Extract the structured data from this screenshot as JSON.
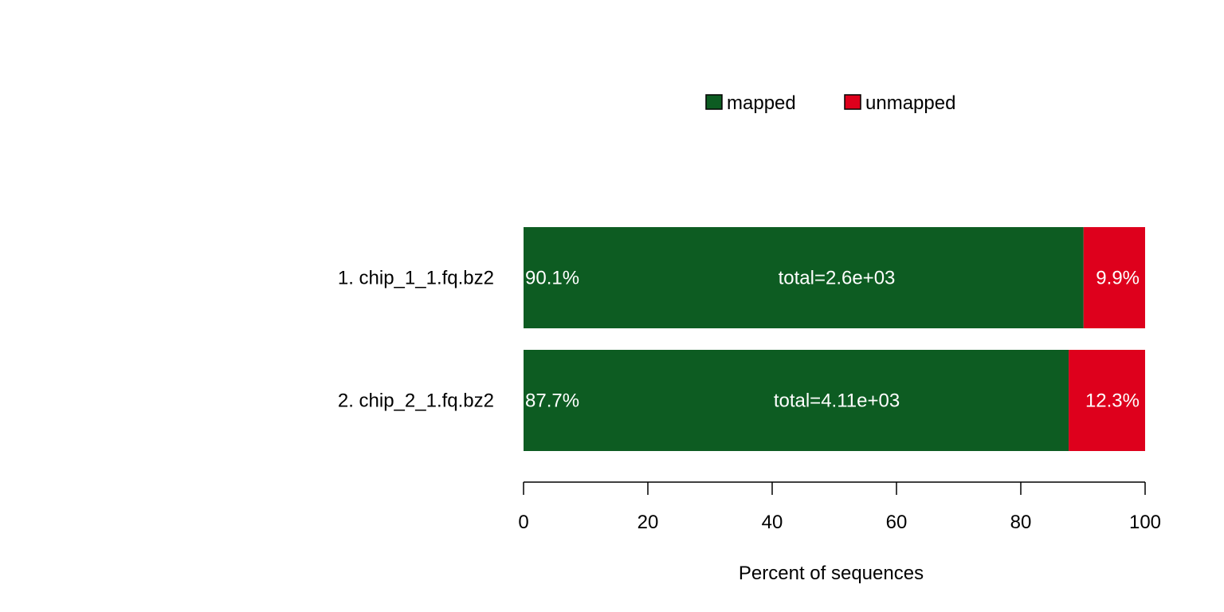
{
  "chart_data": {
    "type": "bar",
    "orientation": "horizontal",
    "stacked": true,
    "categories": [
      "1. chip_1_1.fq.bz2",
      "2. chip_2_1.fq.bz2"
    ],
    "series": [
      {
        "name": "mapped",
        "values": [
          90.1,
          87.7
        ],
        "labels": [
          "90.1%",
          "87.7%"
        ],
        "color": "#0d5c22"
      },
      {
        "name": "unmapped",
        "values": [
          9.9,
          12.3
        ],
        "labels": [
          "9.9%",
          "12.3%"
        ],
        "color": "#de001c"
      }
    ],
    "totals": [
      "total=2.6e+03",
      "total=4.11e+03"
    ],
    "xlabel": "Percent of sequences",
    "xlim": [
      0,
      100
    ],
    "xticks": [
      0,
      20,
      40,
      60,
      80,
      100
    ],
    "xtick_labels": [
      "0",
      "20",
      "40",
      "60",
      "80",
      "100"
    ],
    "legend_position": "top",
    "grid": false
  }
}
